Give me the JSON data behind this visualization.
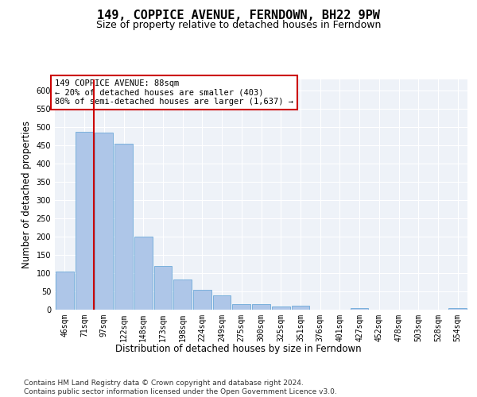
{
  "title": "149, COPPICE AVENUE, FERNDOWN, BH22 9PW",
  "subtitle": "Size of property relative to detached houses in Ferndown",
  "xlabel_dist": "Distribution of detached houses by size in Ferndown",
  "ylabel": "Number of detached properties",
  "categories": [
    "46sqm",
    "71sqm",
    "97sqm",
    "122sqm",
    "148sqm",
    "173sqm",
    "198sqm",
    "224sqm",
    "249sqm",
    "275sqm",
    "300sqm",
    "325sqm",
    "351sqm",
    "376sqm",
    "401sqm",
    "427sqm",
    "452sqm",
    "478sqm",
    "503sqm",
    "528sqm",
    "554sqm"
  ],
  "values": [
    105,
    487,
    485,
    453,
    200,
    120,
    83,
    55,
    40,
    15,
    15,
    8,
    10,
    0,
    0,
    5,
    0,
    0,
    0,
    0,
    5
  ],
  "bar_color": "#aec6e8",
  "bar_edge_color": "#5a9fd4",
  "vline_color": "#cc0000",
  "annotation_text": "149 COPPICE AVENUE: 88sqm\n← 20% of detached houses are smaller (403)\n80% of semi-detached houses are larger (1,637) →",
  "annotation_box_color": "#ffffff",
  "annotation_box_edgecolor": "#cc0000",
  "ylim": [
    0,
    630
  ],
  "yticks": [
    0,
    50,
    100,
    150,
    200,
    250,
    300,
    350,
    400,
    450,
    500,
    550,
    600
  ],
  "footer_text": "Contains HM Land Registry data © Crown copyright and database right 2024.\nContains public sector information licensed under the Open Government Licence v3.0.",
  "background_color": "#eef2f8",
  "grid_color": "#ffffff",
  "title_fontsize": 11,
  "subtitle_fontsize": 9,
  "tick_fontsize": 7,
  "ylabel_fontsize": 8.5,
  "footer_fontsize": 6.5,
  "annot_fontsize": 7.5
}
